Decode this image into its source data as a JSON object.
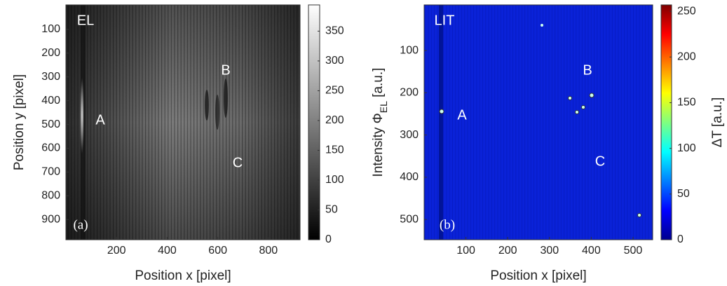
{
  "chart_data": [
    {
      "type": "heatmap",
      "colormap": "gray",
      "x_label": "Position x [pixel]",
      "y_label": "Position y [pixel]",
      "xlim": [
        0,
        925
      ],
      "xticks": [
        200,
        400,
        600,
        800
      ],
      "ylim": [
        -3,
        985
      ],
      "yticks": [
        100,
        200,
        300,
        400,
        500,
        600,
        700,
        800,
        900
      ],
      "y_inverted": true,
      "clim": [
        0,
        394
      ],
      "cticks": [
        0,
        50,
        100,
        150,
        200,
        250,
        300,
        350
      ],
      "annotations": [
        "EL",
        "A",
        "B",
        "C",
        "(a)"
      ]
    },
    {
      "type": "heatmap",
      "colormap": "jet",
      "x_label": "Position x [pixel]",
      "y_label": "Intensity Φ",
      "y_label_sub": "EL",
      "y_label_end": " [a.u.]",
      "xlim": [
        0,
        547
      ],
      "xticks": [
        100,
        200,
        300,
        400,
        500
      ],
      "ylim": [
        -8,
        548
      ],
      "yticks": [
        100,
        200,
        300,
        400,
        500
      ],
      "y_inverted": true,
      "clim": [
        0,
        257
      ],
      "cticks": [
        0,
        50,
        100,
        150,
        200,
        250
      ],
      "c_label": "ΔT [a.u.]",
      "annotations": [
        "LIT",
        "A",
        "B",
        "C",
        "(b)"
      ]
    }
  ]
}
